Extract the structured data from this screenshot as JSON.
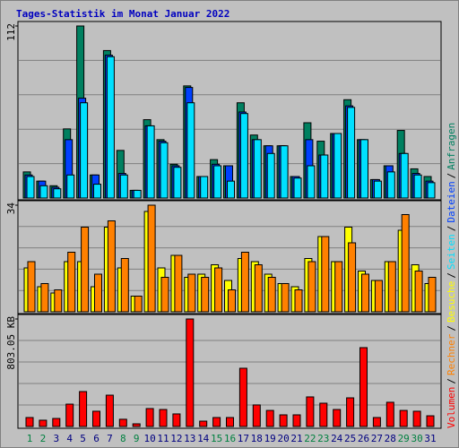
{
  "chart_data": {
    "title": "Tages-Statistik im Monat Januar 2022",
    "categories": [
      "1",
      "2",
      "3",
      "4",
      "5",
      "6",
      "7",
      "8",
      "9",
      "10",
      "11",
      "12",
      "13",
      "14",
      "15",
      "16",
      "17",
      "18",
      "19",
      "20",
      "21",
      "22",
      "23",
      "24",
      "25",
      "26",
      "27",
      "28",
      "29",
      "30",
      "31"
    ],
    "category_colors": [
      "#008040",
      "#008040",
      "#000080",
      "#000080",
      "#000080",
      "#000080",
      "#000080",
      "#008040",
      "#008040",
      "#000080",
      "#000080",
      "#000080",
      "#000080",
      "#000080",
      "#008040",
      "#008040",
      "#000080",
      "#000080",
      "#000080",
      "#000080",
      "#000080",
      "#008040",
      "#008040",
      "#000080",
      "#000080",
      "#000080",
      "#000080",
      "#000080",
      "#008040",
      "#008040",
      "#000080"
    ],
    "legend_separator": "/",
    "legend_order": [
      "Volumen",
      "Rechner",
      "Besuche",
      "Seiten",
      "Dateien",
      "Anfragen"
    ],
    "panels": [
      {
        "type": "bar",
        "ylim": [
          0,
          112
        ],
        "yticks": [
          112
        ],
        "series": [
          {
            "name": "Anfragen",
            "color": "#008060",
            "values": [
              17,
              11,
              8,
              45,
              112,
              15,
              96,
              31,
              5,
              51,
              38,
              22,
              73,
              14,
              25,
              21,
              62,
              41,
              34,
              34,
              14,
              49,
              37,
              42,
              64,
              38,
              12,
              21,
              44,
              19,
              14
            ]
          },
          {
            "name": "Dateien",
            "color": "#0040ff",
            "values": [
              15,
              11,
              7,
              38,
              65,
              15,
              93,
              16,
              5,
              47,
              37,
              21,
              72,
              14,
              22,
              21,
              56,
              38,
              34,
              34,
              14,
              38,
              28,
              42,
              60,
              38,
              12,
              21,
              29,
              16,
              11
            ]
          },
          {
            "name": "Seiten",
            "color": "#00e0ff",
            "values": [
              14,
              8,
              6,
              15,
              62,
              9,
              92,
              15,
              5,
              47,
              36,
              20,
              62,
              14,
              21,
              11,
              55,
              38,
              29,
              34,
              13,
              21,
              28,
              42,
              59,
              38,
              11,
              17,
              29,
              15,
              10
            ]
          }
        ]
      },
      {
        "type": "bar",
        "ylim": [
          0,
          34
        ],
        "yticks": [
          34
        ],
        "series": [
          {
            "name": "Besuche",
            "color": "#ffff00",
            "values": [
              14,
              8,
              6,
              16,
              16,
              8,
              27,
              14,
              5,
              32,
              14,
              18,
              11,
              12,
              15,
              10,
              17,
              16,
              12,
              9,
              8,
              17,
              24,
              16,
              27,
              13,
              10,
              16,
              26,
              15,
              9
            ]
          },
          {
            "name": "Rechner",
            "color": "#ff8000",
            "values": [
              16,
              9,
              7,
              19,
              27,
              12,
              29,
              17,
              5,
              34,
              11,
              18,
              12,
              11,
              14,
              7,
              19,
              15,
              11,
              9,
              7,
              16,
              24,
              16,
              22,
              12,
              10,
              16,
              31,
              13,
              11
            ]
          }
        ]
      },
      {
        "type": "bar",
        "ylim": [
          0,
          803.05
        ],
        "yticks": [
          {
            "value": 803.05,
            "label": "803.05 KB"
          }
        ],
        "series": [
          {
            "name": "Volumen",
            "color": "#ff0000",
            "values": [
              67,
              47,
              60,
              167,
              261,
              114,
              234,
              54,
              20,
              134,
              127,
              94,
              803.05,
              40,
              67,
              67,
              435,
              161,
              120,
              87,
              87,
              221,
              174,
              127,
              214,
              589,
              67,
              181,
              120,
              114,
              80
            ]
          }
        ]
      }
    ]
  }
}
